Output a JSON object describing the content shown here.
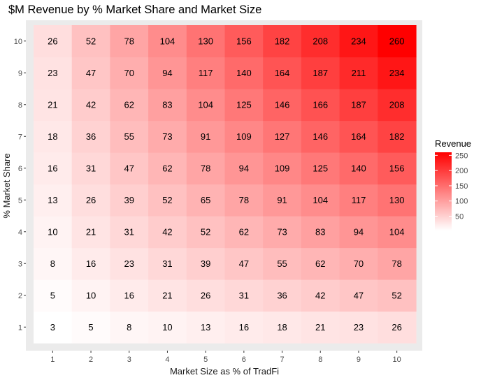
{
  "chart_data": {
    "type": "heatmap",
    "title": "$M Revenue by % Market Share and Market Size",
    "xlabel": "Market Size as % of TradFi",
    "ylabel": "% Market Share",
    "x_categories": [
      "1",
      "2",
      "3",
      "4",
      "5",
      "6",
      "7",
      "8",
      "9",
      "10"
    ],
    "y_categories": [
      "1",
      "2",
      "3",
      "4",
      "5",
      "6",
      "7",
      "8",
      "9",
      "10"
    ],
    "values": [
      [
        3,
        5,
        8,
        10,
        13,
        16,
        18,
        21,
        23,
        26
      ],
      [
        5,
        10,
        16,
        21,
        26,
        31,
        36,
        42,
        47,
        52
      ],
      [
        8,
        16,
        23,
        31,
        39,
        47,
        55,
        62,
        70,
        78
      ],
      [
        10,
        21,
        31,
        42,
        52,
        62,
        73,
        83,
        94,
        104
      ],
      [
        13,
        26,
        39,
        52,
        65,
        78,
        91,
        104,
        117,
        130
      ],
      [
        16,
        31,
        47,
        62,
        78,
        94,
        109,
        125,
        140,
        156
      ],
      [
        18,
        36,
        55,
        73,
        91,
        109,
        127,
        146,
        164,
        182
      ],
      [
        21,
        42,
        62,
        83,
        104,
        125,
        146,
        166,
        187,
        208
      ],
      [
        23,
        47,
        70,
        94,
        117,
        140,
        164,
        187,
        211,
        234
      ],
      [
        26,
        52,
        78,
        104,
        130,
        156,
        182,
        208,
        234,
        260
      ]
    ],
    "legend": {
      "title": "Revenue",
      "ticks": [
        50,
        100,
        150,
        200,
        250
      ],
      "low_color": "#ffffff",
      "high_color": "#ff0000",
      "placement": "right"
    },
    "grid": true,
    "panel_background": "#ebebeb"
  }
}
